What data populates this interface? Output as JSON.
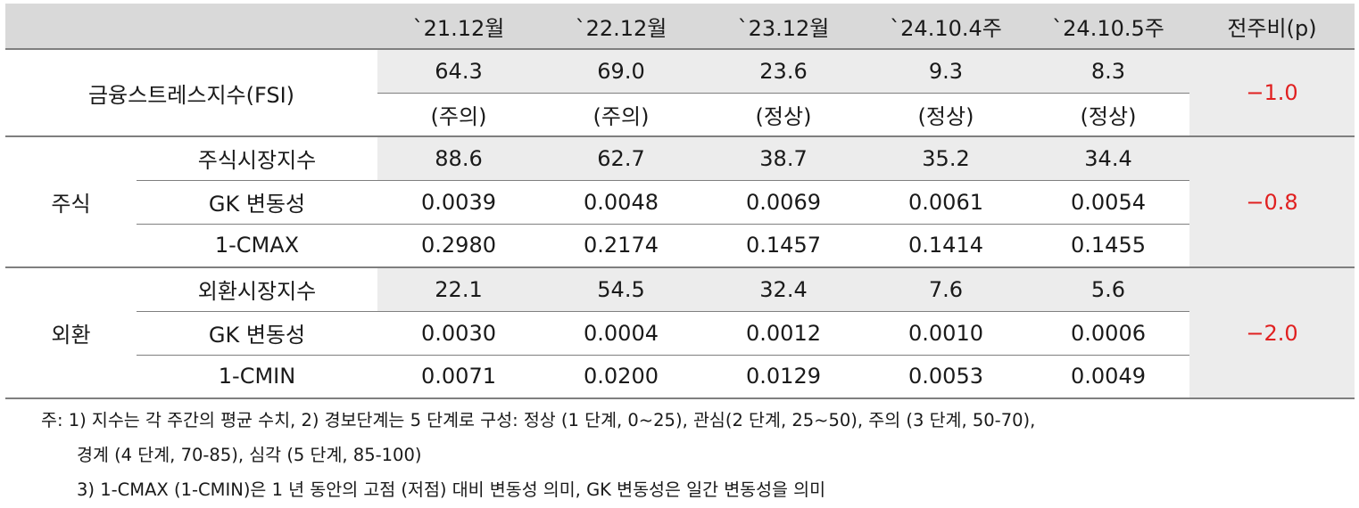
{
  "header": {
    "cols": [
      "`21.12월",
      "`22.12월",
      "`23.12월",
      "`24.10.4주",
      "`24.10.5주"
    ],
    "change": "전주비(p)"
  },
  "fsi": {
    "label": "금융스트레스지수(FSI)",
    "values": [
      "64.3",
      "69.0",
      "23.6",
      "9.3",
      "8.3"
    ],
    "levels": [
      "(주의)",
      "(주의)",
      "(정상)",
      "(정상)",
      "(정상)"
    ],
    "change": "−1.0"
  },
  "stock": {
    "label": "주식",
    "change": "−0.8",
    "rows": [
      {
        "label": "주식시장지수",
        "values": [
          "88.6",
          "62.7",
          "38.7",
          "35.2",
          "34.4"
        ]
      },
      {
        "label": "GK 변동성",
        "values": [
          "0.0039",
          "0.0048",
          "0.0069",
          "0.0061",
          "0.0054"
        ]
      },
      {
        "label": "1-CMAX",
        "values": [
          "0.2980",
          "0.2174",
          "0.1457",
          "0.1414",
          "0.1455"
        ]
      }
    ]
  },
  "fx": {
    "label": "외환",
    "change": "−2.0",
    "rows": [
      {
        "label": "외환시장지수",
        "values": [
          "22.1",
          "54.5",
          "32.4",
          "7.6",
          "5.6"
        ]
      },
      {
        "label": "GK 변동성",
        "values": [
          "0.0030",
          "0.0004",
          "0.0012",
          "0.0010",
          "0.0006"
        ]
      },
      {
        "label": "1-CMIN",
        "values": [
          "0.0071",
          "0.0200",
          "0.0129",
          "0.0053",
          "0.0049"
        ]
      }
    ]
  },
  "notes": [
    "주: 1) 지수는 각 주간의 평균 수치, 2) 경보단계는 5 단계로 구성: 정상 (1 단계, 0~25), 관심(2 단계, 25~50), 주의 (3 단계, 50-70),",
    "경계 (4 단계, 70-85), 심각 (5 단계, 85-100)",
    "3) 1-CMAX (1-CMIN)은 1 년 동안의 고점 (저점) 대비 변동성 의미, GK 변동성은 일간 변동성을 의미"
  ],
  "colors": {
    "header_bg": "#d9d9d9",
    "shade_bg": "#ececec",
    "change_text": "#e02020",
    "rule": "#7f7f7f"
  }
}
